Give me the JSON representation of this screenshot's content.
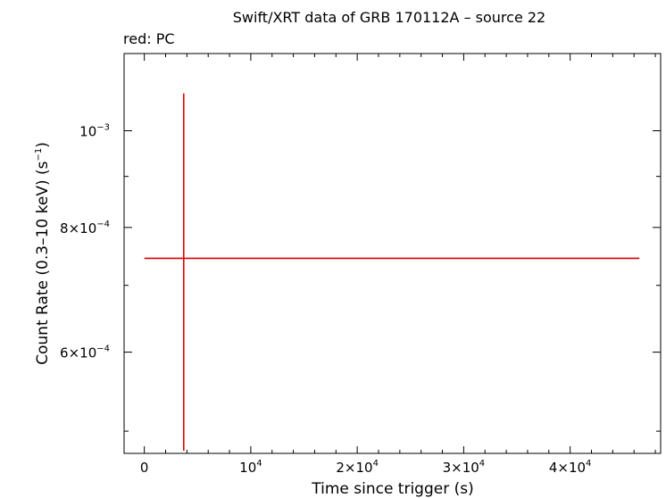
{
  "chart_data": {
    "type": "scatter",
    "title": "Swift/XRT data of GRB 170112A – source 22",
    "subtitle": "red: PC",
    "xlabel": "Time since trigger (s)",
    "ylabel_main": "Count Rate (0.3–10 keV) (s",
    "ylabel_sup": "−1",
    "ylabel_end": ")",
    "xlim": [
      -1900,
      48500
    ],
    "ylim": [
      0.000475,
      0.001195
    ],
    "y_scale": "log",
    "grid": false,
    "x_ticks": [
      {
        "value": 0,
        "mant": "0",
        "exp": ""
      },
      {
        "value": 10000,
        "mant": "10",
        "exp": "4"
      },
      {
        "value": 20000,
        "mant": "2×10",
        "exp": "4"
      },
      {
        "value": 30000,
        "mant": "3×10",
        "exp": "4"
      },
      {
        "value": 40000,
        "mant": "4×10",
        "exp": "4"
      }
    ],
    "y_ticks": [
      {
        "value": 0.0006,
        "mant": "6×10",
        "exp": "−4"
      },
      {
        "value": 0.0008,
        "mant": "8×10",
        "exp": "−4"
      },
      {
        "value": 0.001,
        "mant": "10",
        "exp": "−3"
      }
    ],
    "series": [
      {
        "color": "#dd0000",
        "points": [
          {
            "x": 3700,
            "y": 0.000745,
            "x_lo": 0,
            "x_hi": 46500,
            "y_lo": 0.000478,
            "y_hi": 0.00109
          }
        ]
      }
    ]
  }
}
